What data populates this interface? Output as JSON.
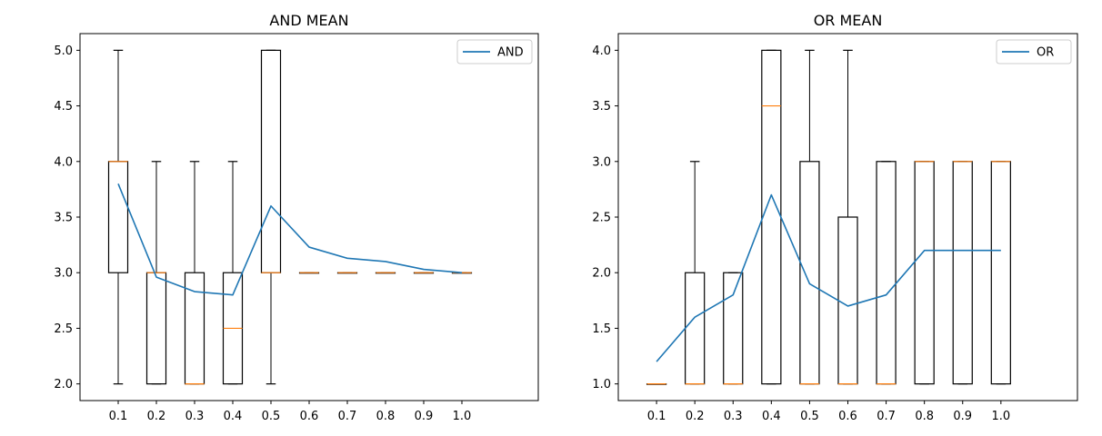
{
  "chart_data": [
    {
      "type": "box",
      "title": "AND MEAN",
      "xlabel": "",
      "ylabel": "",
      "categories": [
        "0.1",
        "0.2",
        "0.3",
        "0.4",
        "0.5",
        "0.6",
        "0.7",
        "0.8",
        "0.9",
        "1.0"
      ],
      "ylim": [
        1.85,
        5.15
      ],
      "yticks": [
        "2.0",
        "2.5",
        "3.0",
        "3.5",
        "4.0",
        "4.5",
        "5.0"
      ],
      "boxes": [
        {
          "whislo": 2.0,
          "q1": 3.0,
          "med": 4.0,
          "q3": 4.0,
          "whishi": 5.0
        },
        {
          "whislo": 2.0,
          "q1": 2.0,
          "med": 3.0,
          "q3": 3.0,
          "whishi": 4.0
        },
        {
          "whislo": 2.0,
          "q1": 2.0,
          "med": 2.0,
          "q3": 3.0,
          "whishi": 4.0
        },
        {
          "whislo": 2.0,
          "q1": 2.0,
          "med": 2.5,
          "q3": 3.0,
          "whishi": 4.0
        },
        {
          "whislo": 2.0,
          "q1": 3.0,
          "med": 3.0,
          "q3": 5.0,
          "whishi": 5.0
        },
        {
          "whislo": 3.0,
          "q1": 3.0,
          "med": 3.0,
          "q3": 3.0,
          "whishi": 3.0
        },
        {
          "whislo": 3.0,
          "q1": 3.0,
          "med": 3.0,
          "q3": 3.0,
          "whishi": 3.0
        },
        {
          "whislo": 3.0,
          "q1": 3.0,
          "med": 3.0,
          "q3": 3.0,
          "whishi": 3.0
        },
        {
          "whislo": 3.0,
          "q1": 3.0,
          "med": 3.0,
          "q3": 3.0,
          "whishi": 3.0
        },
        {
          "whislo": 3.0,
          "q1": 3.0,
          "med": 3.0,
          "q3": 3.0,
          "whishi": 3.0
        }
      ],
      "series": [
        {
          "name": "AND",
          "type": "line",
          "color": "#1f77b4",
          "values": [
            3.8,
            2.96,
            2.83,
            2.8,
            3.6,
            3.23,
            3.13,
            3.1,
            3.03,
            3.0
          ]
        }
      ],
      "legend": "upper-right",
      "grid": false,
      "box_color": "#000000",
      "median_color": "#ff7f0e"
    },
    {
      "type": "box",
      "title": "OR MEAN",
      "xlabel": "",
      "ylabel": "",
      "categories": [
        "0.1",
        "0.2",
        "0.3",
        "0.4",
        "0.5",
        "0.6",
        "0.7",
        "0.8",
        "0.9",
        "1.0"
      ],
      "ylim": [
        0.85,
        4.15
      ],
      "yticks": [
        "1.0",
        "1.5",
        "2.0",
        "2.5",
        "3.0",
        "3.5",
        "4.0"
      ],
      "boxes": [
        {
          "whislo": 1.0,
          "q1": 1.0,
          "med": 1.0,
          "q3": 1.0,
          "whishi": 1.0
        },
        {
          "whislo": 1.0,
          "q1": 1.0,
          "med": 1.0,
          "q3": 2.0,
          "whishi": 3.0
        },
        {
          "whislo": 1.0,
          "q1": 1.0,
          "med": 1.0,
          "q3": 2.0,
          "whishi": 2.0
        },
        {
          "whislo": 1.0,
          "q1": 1.0,
          "med": 3.5,
          "q3": 4.0,
          "whishi": 4.0
        },
        {
          "whislo": 1.0,
          "q1": 1.0,
          "med": 1.0,
          "q3": 3.0,
          "whishi": 4.0
        },
        {
          "whislo": 1.0,
          "q1": 1.0,
          "med": 1.0,
          "q3": 2.5,
          "whishi": 4.0
        },
        {
          "whislo": 1.0,
          "q1": 1.0,
          "med": 1.0,
          "q3": 3.0,
          "whishi": 3.0
        },
        {
          "whislo": 1.0,
          "q1": 1.0,
          "med": 3.0,
          "q3": 3.0,
          "whishi": 3.0
        },
        {
          "whislo": 1.0,
          "q1": 1.0,
          "med": 3.0,
          "q3": 3.0,
          "whishi": 3.0
        },
        {
          "whislo": 1.0,
          "q1": 1.0,
          "med": 3.0,
          "q3": 3.0,
          "whishi": 3.0
        }
      ],
      "series": [
        {
          "name": "OR",
          "type": "line",
          "color": "#1f77b4",
          "values": [
            1.2,
            1.6,
            1.8,
            2.7,
            1.9,
            1.7,
            1.8,
            2.2,
            2.2,
            2.2
          ]
        }
      ],
      "legend": "upper-right",
      "grid": false,
      "box_color": "#000000",
      "median_color": "#ff7f0e"
    }
  ]
}
